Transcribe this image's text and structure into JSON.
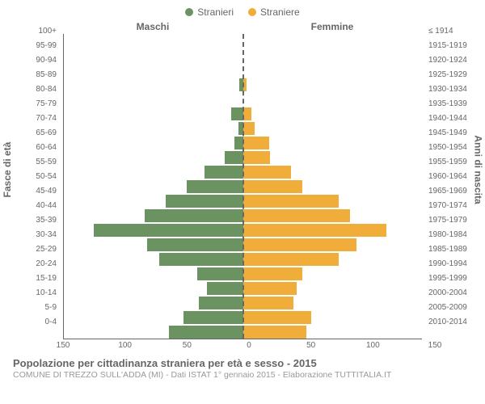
{
  "chart": {
    "type": "population-pyramid",
    "legend": [
      {
        "label": "Stranieri",
        "color": "#6b9362"
      },
      {
        "label": "Straniere",
        "color": "#f0ad3a"
      }
    ],
    "header_left": "Maschi",
    "header_right": "Femmine",
    "y_axis_left_title": "Fasce di età",
    "y_axis_right_title": "Anni di nascita",
    "x_max": 150,
    "x_ticks_left": [
      150,
      100,
      50,
      0
    ],
    "x_ticks_right": [
      0,
      50,
      100,
      150
    ],
    "bar_gap_ratio": 0.12,
    "background_color": "#ffffff",
    "plot_border_color": "#666666",
    "tick_font_size": 10,
    "header_font_size": 12,
    "center_line_color": "#666666",
    "rows": [
      {
        "age": "100+",
        "birth": "≤ 1914",
        "m": 0,
        "f": 0
      },
      {
        "age": "95-99",
        "birth": "1915-1919",
        "m": 0,
        "f": 0
      },
      {
        "age": "90-94",
        "birth": "1920-1924",
        "m": 0,
        "f": 0
      },
      {
        "age": "85-89",
        "birth": "1925-1929",
        "m": 3,
        "f": 3
      },
      {
        "age": "80-84",
        "birth": "1930-1934",
        "m": 0,
        "f": 0
      },
      {
        "age": "75-79",
        "birth": "1935-1939",
        "m": 10,
        "f": 7
      },
      {
        "age": "70-74",
        "birth": "1940-1944",
        "m": 4,
        "f": 10
      },
      {
        "age": "65-69",
        "birth": "1945-1949",
        "m": 7,
        "f": 22
      },
      {
        "age": "60-64",
        "birth": "1950-1954",
        "m": 15,
        "f": 23
      },
      {
        "age": "55-59",
        "birth": "1955-1959",
        "m": 32,
        "f": 40
      },
      {
        "age": "50-54",
        "birth": "1960-1964",
        "m": 47,
        "f": 50
      },
      {
        "age": "45-49",
        "birth": "1965-1969",
        "m": 65,
        "f": 80
      },
      {
        "age": "40-44",
        "birth": "1970-1974",
        "m": 82,
        "f": 90
      },
      {
        "age": "35-39",
        "birth": "1975-1979",
        "m": 125,
        "f": 120
      },
      {
        "age": "30-34",
        "birth": "1980-1984",
        "m": 80,
        "f": 95
      },
      {
        "age": "25-29",
        "birth": "1985-1989",
        "m": 70,
        "f": 80
      },
      {
        "age": "20-24",
        "birth": "1990-1994",
        "m": 38,
        "f": 50
      },
      {
        "age": "15-19",
        "birth": "1995-1999",
        "m": 30,
        "f": 45
      },
      {
        "age": "10-14",
        "birth": "2000-2004",
        "m": 37,
        "f": 42
      },
      {
        "age": "5-9",
        "birth": "2005-2009",
        "m": 50,
        "f": 57
      },
      {
        "age": "0-4",
        "birth": "2010-2014",
        "m": 62,
        "f": 53
      }
    ]
  },
  "caption_title": "Popolazione per cittadinanza straniera per età e sesso - 2015",
  "caption_subtitle": "COMUNE DI TREZZO SULL'ADDA (MI) - Dati ISTAT 1° gennaio 2015 - Elaborazione TUTTITALIA.IT"
}
